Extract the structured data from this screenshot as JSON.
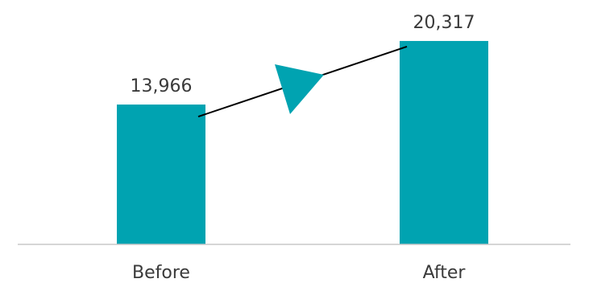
{
  "colors": {
    "bar": "#00A3B1",
    "arrow": "#00A3B1",
    "connector": "#000000",
    "axis": "#c8c8c8",
    "text": "#3a3a3a"
  },
  "chart_data": {
    "type": "bar",
    "categories": [
      "Before",
      "After"
    ],
    "values": [
      13966,
      20317
    ],
    "value_labels": [
      "13,966",
      "20,317"
    ],
    "title": "",
    "xlabel": "",
    "ylabel": "",
    "ylim": [
      0,
      22000
    ],
    "grid": false,
    "legend": "none",
    "annotations": [
      {
        "type": "arrow",
        "from": "Before",
        "to": "After",
        "text": ""
      }
    ]
  }
}
